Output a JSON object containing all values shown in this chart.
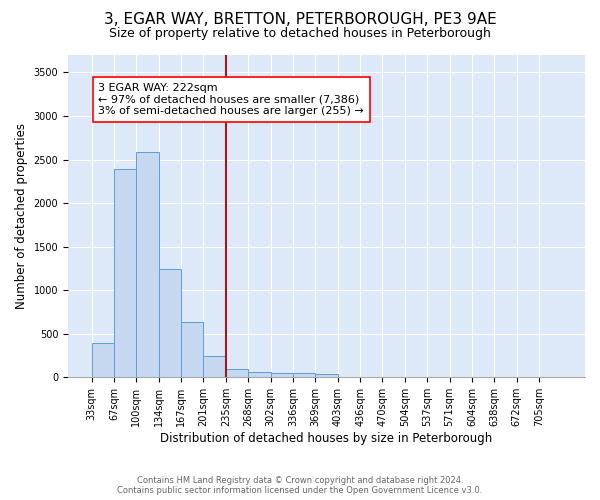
{
  "title": "3, EGAR WAY, BRETTON, PETERBOROUGH, PE3 9AE",
  "subtitle": "Size of property relative to detached houses in Peterborough",
  "xlabel": "Distribution of detached houses by size in Peterborough",
  "ylabel": "Number of detached properties",
  "bar_labels": [
    "33sqm",
    "67sqm",
    "100sqm",
    "134sqm",
    "167sqm",
    "201sqm",
    "235sqm",
    "268sqm",
    "302sqm",
    "336sqm",
    "369sqm",
    "403sqm",
    "436sqm",
    "470sqm",
    "504sqm",
    "537sqm",
    "571sqm",
    "604sqm",
    "638sqm",
    "672sqm",
    "705sqm"
  ],
  "bar_values": [
    390,
    2390,
    2590,
    1240,
    630,
    250,
    100,
    60,
    55,
    50,
    35,
    0,
    0,
    0,
    0,
    0,
    0,
    0,
    0,
    0,
    0
  ],
  "bar_color": "#c5d8f0",
  "bar_edge_color": "#5a9fd4",
  "annotation_text_lines": [
    "3 EGAR WAY: 222sqm",
    "← 97% of detached houses are smaller (7,386)",
    "3% of semi-detached houses are larger (255) →"
  ],
  "vline_color": "#9b1b1b",
  "vline_x": 6.0,
  "ylim": [
    0,
    3700
  ],
  "yticks": [
    0,
    500,
    1000,
    1500,
    2000,
    2500,
    3000,
    3500
  ],
  "background_color": "#dde8f8",
  "grid_color": "#ffffff",
  "footnote": "Contains HM Land Registry data © Crown copyright and database right 2024.\nContains public sector information licensed under the Open Government Licence v3.0.",
  "annotation_fontsize": 8.0,
  "title_fontsize": 11,
  "subtitle_fontsize": 9,
  "ylabel_fontsize": 8.5,
  "xlabel_fontsize": 8.5,
  "tick_fontsize": 7
}
